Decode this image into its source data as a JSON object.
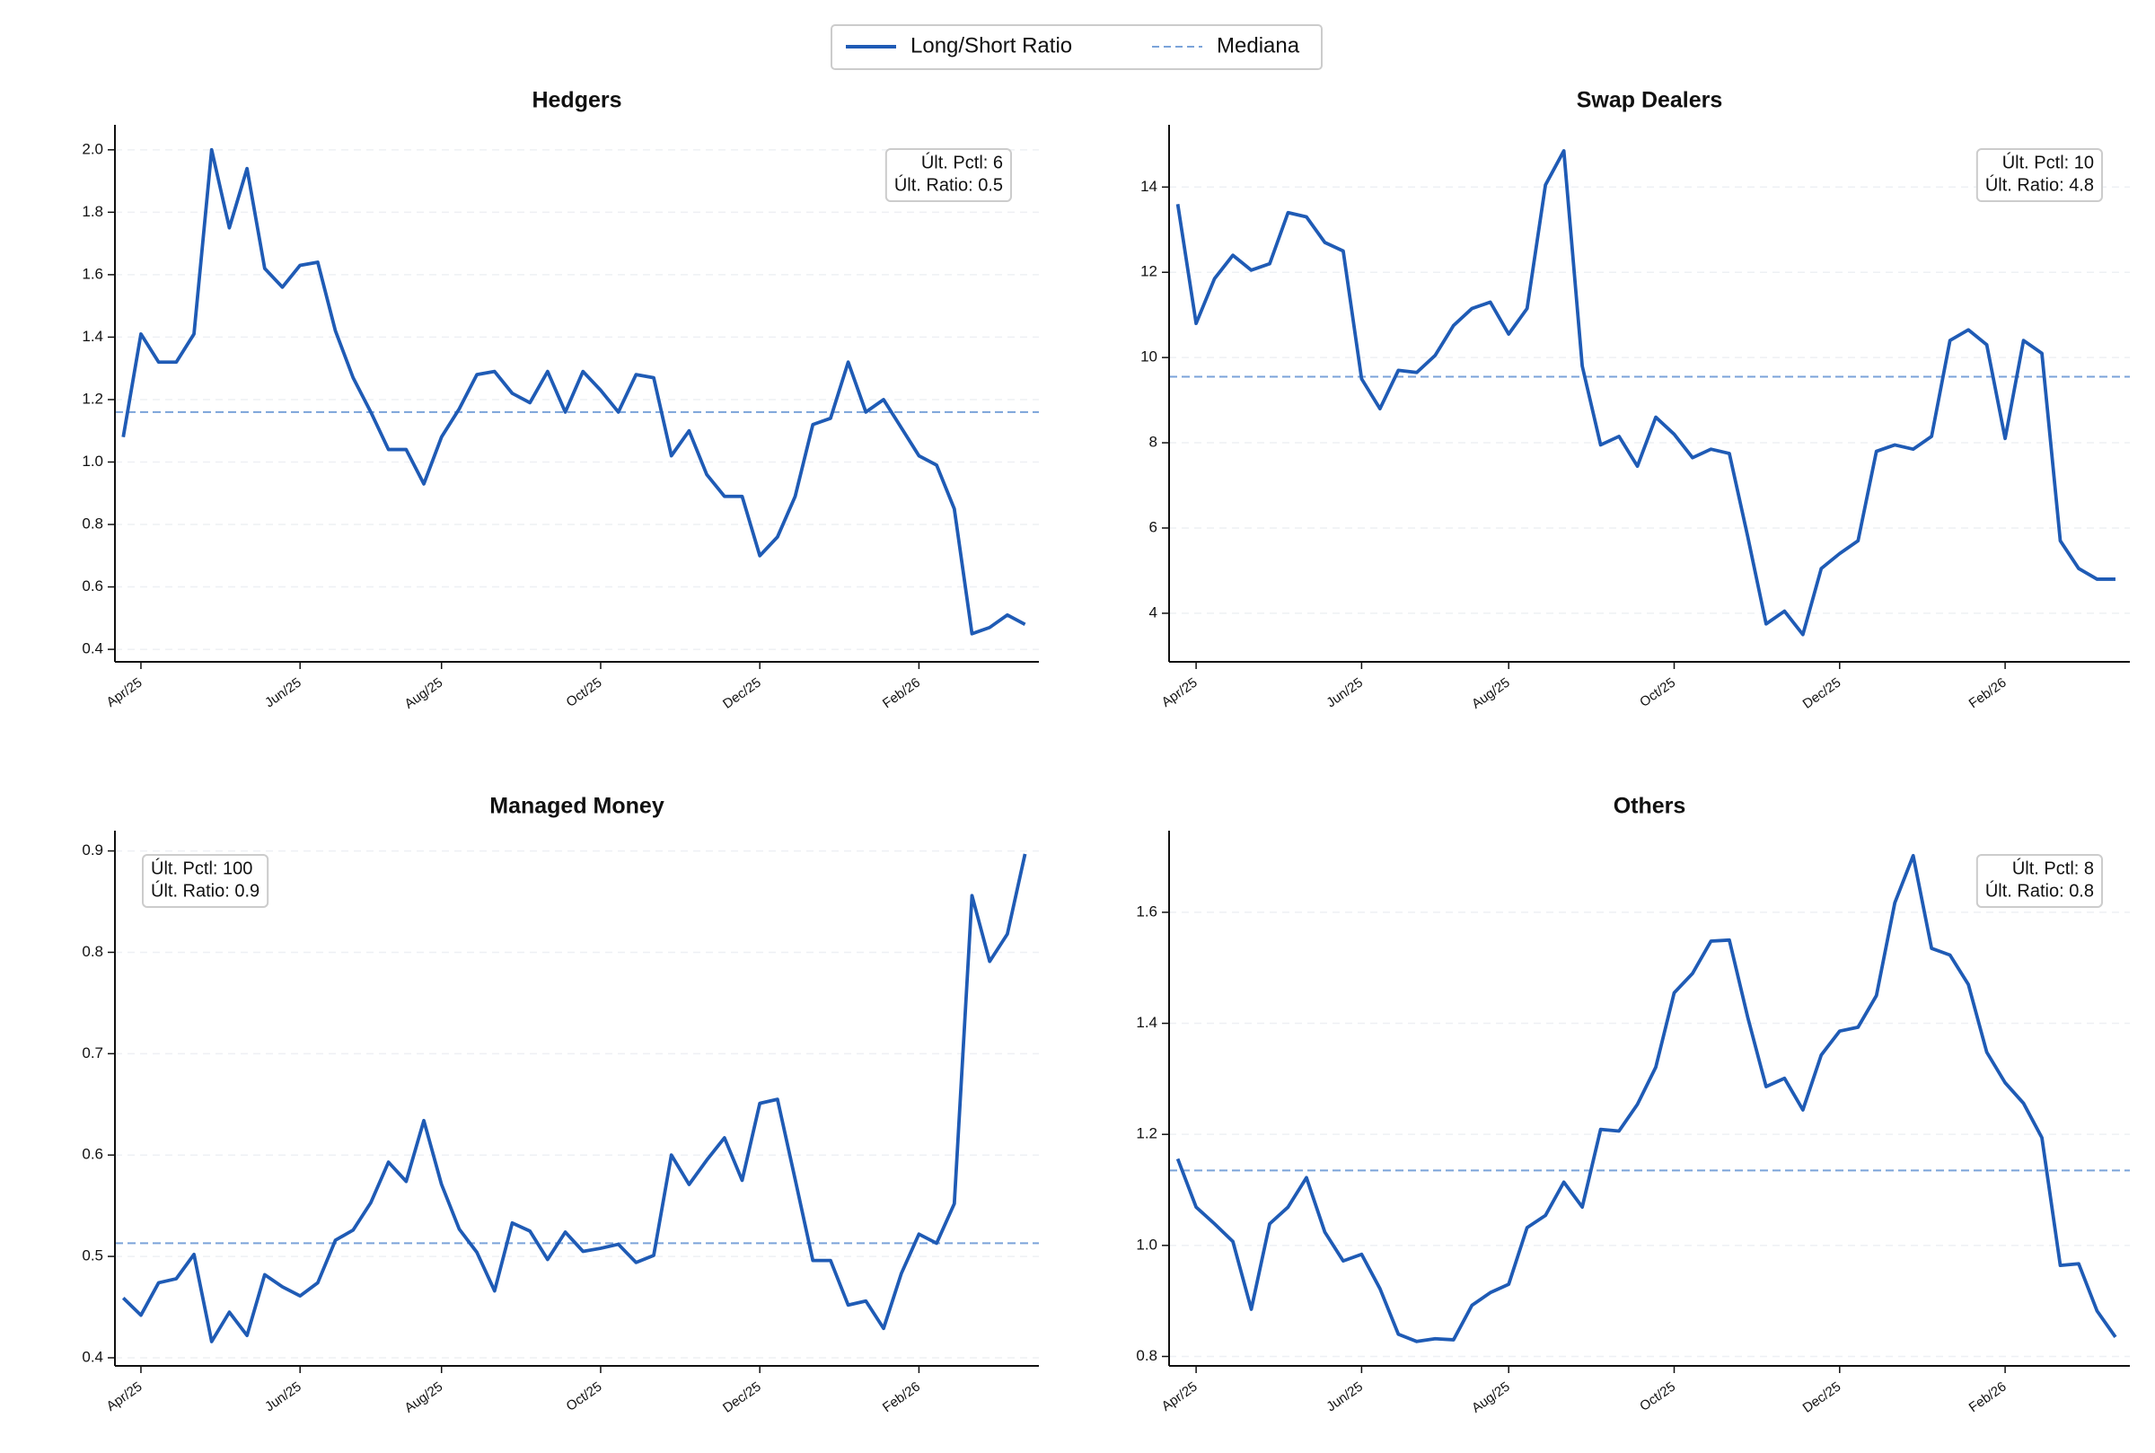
{
  "chart_data": [
    {
      "type": "line",
      "title": "Hedgers",
      "categories": [
        null,
        "Apr/25",
        null,
        null,
        null,
        null,
        null,
        null,
        null,
        null,
        "Jun/25",
        null,
        null,
        null,
        null,
        null,
        null,
        null,
        "Aug/25",
        null,
        null,
        null,
        null,
        null,
        null,
        null,
        null,
        "Oct/25",
        null,
        null,
        null,
        null,
        null,
        null,
        null,
        null,
        "Dec/25",
        null,
        null,
        null,
        null,
        null,
        null,
        null,
        null,
        "Feb/26",
        null,
        null,
        null,
        null,
        null,
        null
      ],
      "series": [
        {
          "name": "Long/Short Ratio",
          "color": "#1f5bb5",
          "values": [
            1.08,
            1.41,
            1.32,
            1.32,
            1.41,
            2.0,
            1.75,
            1.94,
            1.62,
            1.56,
            1.63,
            1.64,
            1.42,
            1.27,
            1.16,
            1.04,
            1.04,
            0.93,
            1.08,
            1.17,
            1.28,
            1.29,
            1.22,
            1.19,
            1.29,
            1.16,
            1.29,
            1.23,
            1.16,
            1.28,
            1.27,
            1.02,
            1.1,
            0.96,
            0.89,
            0.89,
            0.7,
            0.76,
            0.89,
            1.12,
            1.14,
            1.32,
            1.16,
            1.2,
            1.11,
            1.02,
            0.99,
            0.85,
            0.45,
            0.47,
            0.51,
            0.48
          ]
        }
      ],
      "median": {
        "name": "Mediana",
        "value": 1.16,
        "color": "#7ba3d9"
      },
      "annotation": {
        "lines": [
          "Últ. Pctl: 6",
          "Últ. Ratio: 0.5"
        ],
        "corner": "upper right"
      },
      "ylim": [
        0.36,
        2.08
      ],
      "yticks": [
        0.4,
        0.6,
        0.8,
        {
          "value": 1,
          "label": "1.0"
        },
        1.2,
        1.4,
        1.6,
        1.8,
        {
          "value": 2,
          "label": "2.0"
        }
      ],
      "grid": true
    },
    {
      "type": "line",
      "title": "Swap Dealers",
      "categories": [
        null,
        "Apr/25",
        null,
        null,
        null,
        null,
        null,
        null,
        null,
        null,
        "Jun/25",
        null,
        null,
        null,
        null,
        null,
        null,
        null,
        "Aug/25",
        null,
        null,
        null,
        null,
        null,
        null,
        null,
        null,
        "Oct/25",
        null,
        null,
        null,
        null,
        null,
        null,
        null,
        null,
        "Dec/25",
        null,
        null,
        null,
        null,
        null,
        null,
        null,
        null,
        "Feb/26",
        null,
        null,
        null,
        null,
        null,
        null
      ],
      "series": [
        {
          "name": "Long/Short Ratio",
          "color": "#1f5bb5",
          "values": [
            13.6,
            10.8,
            11.85,
            12.4,
            12.05,
            12.2,
            13.4,
            13.3,
            12.7,
            12.5,
            9.5,
            8.8,
            9.7,
            9.65,
            10.05,
            10.75,
            11.15,
            11.3,
            10.55,
            11.15,
            14.05,
            14.85,
            9.8,
            7.95,
            8.15,
            7.45,
            8.6,
            8.2,
            7.65,
            7.85,
            7.75,
            5.8,
            3.75,
            4.05,
            3.5,
            5.05,
            5.4,
            5.7,
            7.8,
            7.95,
            7.85,
            8.15,
            10.4,
            10.65,
            10.3,
            8.1,
            10.4,
            10.1,
            5.7,
            5.05,
            4.8,
            4.8
          ]
        }
      ],
      "median": {
        "name": "Mediana",
        "value": 9.55,
        "color": "#7ba3d9"
      },
      "annotation": {
        "lines": [
          "Últ. Pctl: 10",
          "Últ. Ratio: 4.8"
        ],
        "corner": "upper right"
      },
      "ylim": [
        2.86,
        15.46
      ],
      "yticks": [
        4,
        6,
        8,
        10,
        12,
        14
      ],
      "grid": true
    },
    {
      "type": "line",
      "title": "Managed Money",
      "categories": [
        null,
        "Apr/25",
        null,
        null,
        null,
        null,
        null,
        null,
        null,
        null,
        "Jun/25",
        null,
        null,
        null,
        null,
        null,
        null,
        null,
        "Aug/25",
        null,
        null,
        null,
        null,
        null,
        null,
        null,
        null,
        "Oct/25",
        null,
        null,
        null,
        null,
        null,
        null,
        null,
        null,
        "Dec/25",
        null,
        null,
        null,
        null,
        null,
        null,
        null,
        null,
        "Feb/26",
        null,
        null,
        null,
        null,
        null,
        null
      ],
      "series": [
        {
          "name": "Long/Short Ratio",
          "color": "#1f5bb5",
          "values": [
            0.459,
            0.442,
            0.474,
            0.478,
            0.502,
            0.416,
            0.445,
            0.422,
            0.482,
            0.47,
            0.461,
            0.474,
            0.516,
            0.526,
            0.553,
            0.593,
            0.574,
            0.634,
            0.571,
            0.527,
            0.504,
            0.466,
            0.533,
            0.525,
            0.497,
            0.524,
            0.505,
            0.508,
            0.512,
            0.494,
            0.501,
            0.6,
            0.571,
            0.595,
            0.617,
            0.575,
            0.651,
            0.655,
            0.576,
            0.496,
            0.496,
            0.452,
            0.456,
            0.429,
            0.483,
            0.522,
            0.513,
            0.552,
            0.856,
            0.791,
            0.818,
            0.897
          ]
        }
      ],
      "median": {
        "name": "Mediana",
        "value": 0.513,
        "color": "#7ba3d9"
      },
      "annotation": {
        "lines": [
          "Últ. Pctl: 100",
          "Últ. Ratio: 0.9"
        ],
        "corner": "upper left"
      },
      "ylim": [
        0.392,
        0.92
      ],
      "yticks": [
        0.4,
        0.5,
        0.6,
        0.7,
        0.8,
        0.9
      ],
      "grid": true
    },
    {
      "type": "line",
      "title": "Others",
      "categories": [
        null,
        "Apr/25",
        null,
        null,
        null,
        null,
        null,
        null,
        null,
        null,
        "Jun/25",
        null,
        null,
        null,
        null,
        null,
        null,
        null,
        "Aug/25",
        null,
        null,
        null,
        null,
        null,
        null,
        null,
        null,
        "Oct/25",
        null,
        null,
        null,
        null,
        null,
        null,
        null,
        null,
        "Dec/25",
        null,
        null,
        null,
        null,
        null,
        null,
        null,
        null,
        "Feb/26",
        null,
        null,
        null,
        null,
        null,
        null
      ],
      "series": [
        {
          "name": "Long/Short Ratio",
          "color": "#1f5bb5",
          "values": [
            1.156,
            1.069,
            1.039,
            1.007,
            0.885,
            1.039,
            1.069,
            1.122,
            1.024,
            0.972,
            0.984,
            0.922,
            0.84,
            0.827,
            0.832,
            0.83,
            0.892,
            0.915,
            0.93,
            1.032,
            1.054,
            1.114,
            1.069,
            1.209,
            1.206,
            1.254,
            1.321,
            1.455,
            1.49,
            1.548,
            1.55,
            1.411,
            1.286,
            1.301,
            1.244,
            1.343,
            1.386,
            1.393,
            1.45,
            1.617,
            1.702,
            1.535,
            1.523,
            1.47,
            1.348,
            1.293,
            1.256,
            1.194,
            0.964,
            0.967,
            0.882,
            0.835
          ]
        }
      ],
      "median": {
        "name": "Mediana",
        "value": 1.135,
        "color": "#7ba3d9"
      },
      "annotation": {
        "lines": [
          "Últ. Pctl: 8",
          "Últ. Ratio: 0.8"
        ],
        "corner": "upper right"
      },
      "ylim": [
        0.783,
        1.747
      ],
      "yticks": [
        {
          "value": 0.8,
          "label": "0.8"
        },
        {
          "value": 1,
          "label": "1.0"
        },
        1.2,
        1.4,
        1.6
      ],
      "grid": true
    }
  ]
}
